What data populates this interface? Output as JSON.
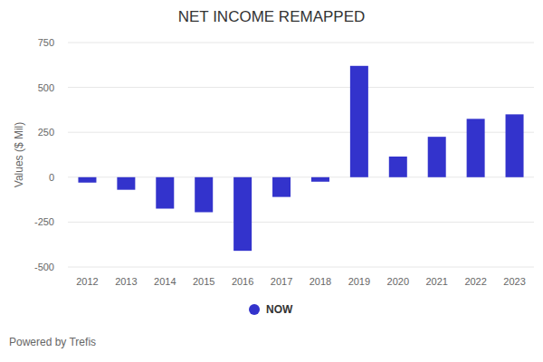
{
  "chart_data": {
    "type": "bar",
    "title": "NET INCOME REMAPPED",
    "y_label": "Values ($ Mil)",
    "categories": [
      "2012",
      "2013",
      "2014",
      "2015",
      "2016",
      "2017",
      "2018",
      "2019",
      "2020",
      "2021",
      "2022",
      "2023"
    ],
    "series": [
      {
        "name": "NOW",
        "color": "#3333cc",
        "values": [
          -30,
          -70,
          -175,
          -195,
          -410,
          -110,
          -25,
          620,
          115,
          225,
          325,
          350
        ]
      }
    ],
    "ylim": [
      -500,
      750
    ],
    "yticks": [
      -500,
      -250,
      0,
      250,
      500,
      750
    ],
    "grid": true,
    "legend": "bottom",
    "footer": "Powered by Trefis"
  }
}
